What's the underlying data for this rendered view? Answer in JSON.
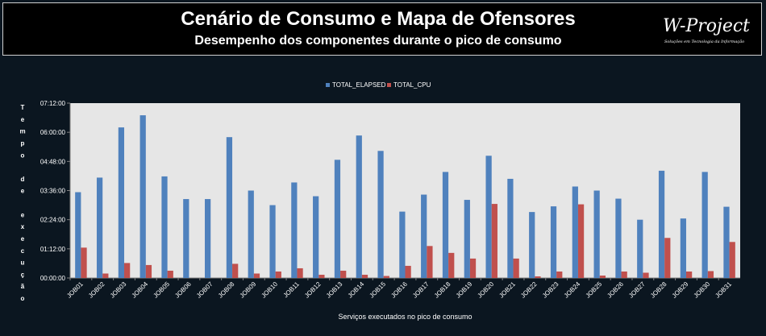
{
  "header": {
    "title": "Cenário de Consumo e Mapa de Ofensores",
    "subtitle": "Desempenho dos componentes durante o pico de consumo",
    "logo_text": "W-Project",
    "logo_tagline": "Soluções em Tecnologia da Informação"
  },
  "colors": {
    "background": "#0b1620",
    "plot_area": "#e6e6e6",
    "elapsed": "#4f81bd",
    "cpu": "#c0504d",
    "text": "#ffffff"
  },
  "chart_data": {
    "type": "bar",
    "title": "",
    "xlabel": "Serviços executados no pico de consumo",
    "ylabel": "Tempo de execução",
    "ylim": [
      0,
      432
    ],
    "y_unit": "minutes",
    "y_ticks": [
      "00:00:00",
      "01:12:00",
      "02:24:00",
      "03:36:00",
      "04:48:00",
      "06:00:00",
      "07:12:00"
    ],
    "legend_position": "top",
    "grid": false,
    "categories": [
      "JOB01",
      "JOB02",
      "JOB03",
      "JOB04",
      "JOB05",
      "JOB06",
      "JOB07",
      "JOB08",
      "JOB09",
      "JOB10",
      "JOB11",
      "JOB12",
      "JOB13",
      "JOB14",
      "JOB15",
      "JOB16",
      "JOB17",
      "JOB18",
      "JOB19",
      "JOB20",
      "JOB21",
      "JOB22",
      "JOB23",
      "JOB24",
      "JOB25",
      "JOB26",
      "JOB27",
      "JOB28",
      "JOB29",
      "JOB30",
      "JOB31"
    ],
    "series": [
      {
        "name": "TOTAL_ELAPSED",
        "values": [
          212,
          248,
          372,
          402,
          251,
          195,
          195,
          348,
          216,
          180,
          236,
          202,
          292,
          352,
          314,
          164,
          206,
          262,
          193,
          302,
          245,
          163,
          177,
          226,
          216,
          196,
          144,
          265,
          147,
          262,
          176
        ]
      },
      {
        "name": "TOTAL_CPU",
        "values": [
          75,
          11,
          37,
          32,
          18,
          0,
          0,
          35,
          11,
          16,
          24,
          8,
          18,
          8,
          5,
          30,
          79,
          62,
          48,
          183,
          48,
          4,
          16,
          182,
          6,
          16,
          13,
          99,
          16,
          17,
          89
        ]
      }
    ]
  }
}
